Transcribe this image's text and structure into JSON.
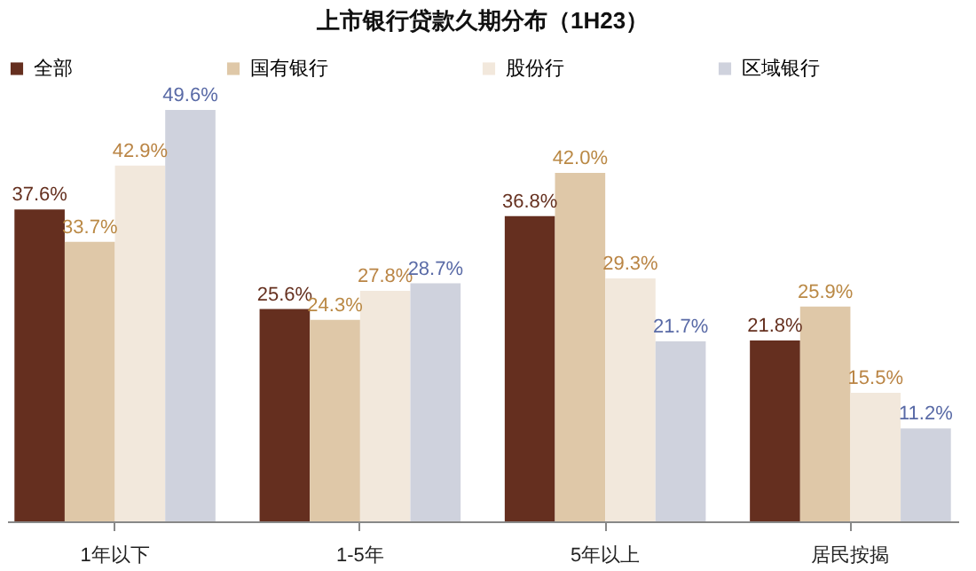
{
  "chart_data": {
    "type": "bar",
    "title": "上市银行贷款久期分布（1H23）",
    "categories": [
      "1年以下",
      "1-5年",
      "5年以上",
      "居民按揭"
    ],
    "legend": "top",
    "series": [
      {
        "name": "全部",
        "color": "#652f1f",
        "values": [
          37.6,
          25.6,
          36.8,
          21.8
        ],
        "value_labels": [
          "37.6%",
          "25.6%",
          "36.8%",
          "21.8%"
        ]
      },
      {
        "name": "国有银行",
        "color": "#dfc8a8",
        "values": [
          33.7,
          24.3,
          42.0,
          25.9
        ],
        "value_labels": [
          "33.7%",
          "24.3%",
          "42.0%",
          "25.9%"
        ]
      },
      {
        "name": "股份行",
        "color": "#f2e8dc",
        "values": [
          42.9,
          27.8,
          29.3,
          15.5
        ],
        "value_labels": [
          "42.9%",
          "27.8%",
          "29.3%",
          "15.5%"
        ]
      },
      {
        "name": "区域银行",
        "color": "#cfd2dd",
        "values": [
          49.6,
          28.7,
          21.7,
          11.2
        ],
        "value_labels": [
          "49.6%",
          "28.7%",
          "21.7%",
          "11.2%"
        ]
      }
    ]
  }
}
